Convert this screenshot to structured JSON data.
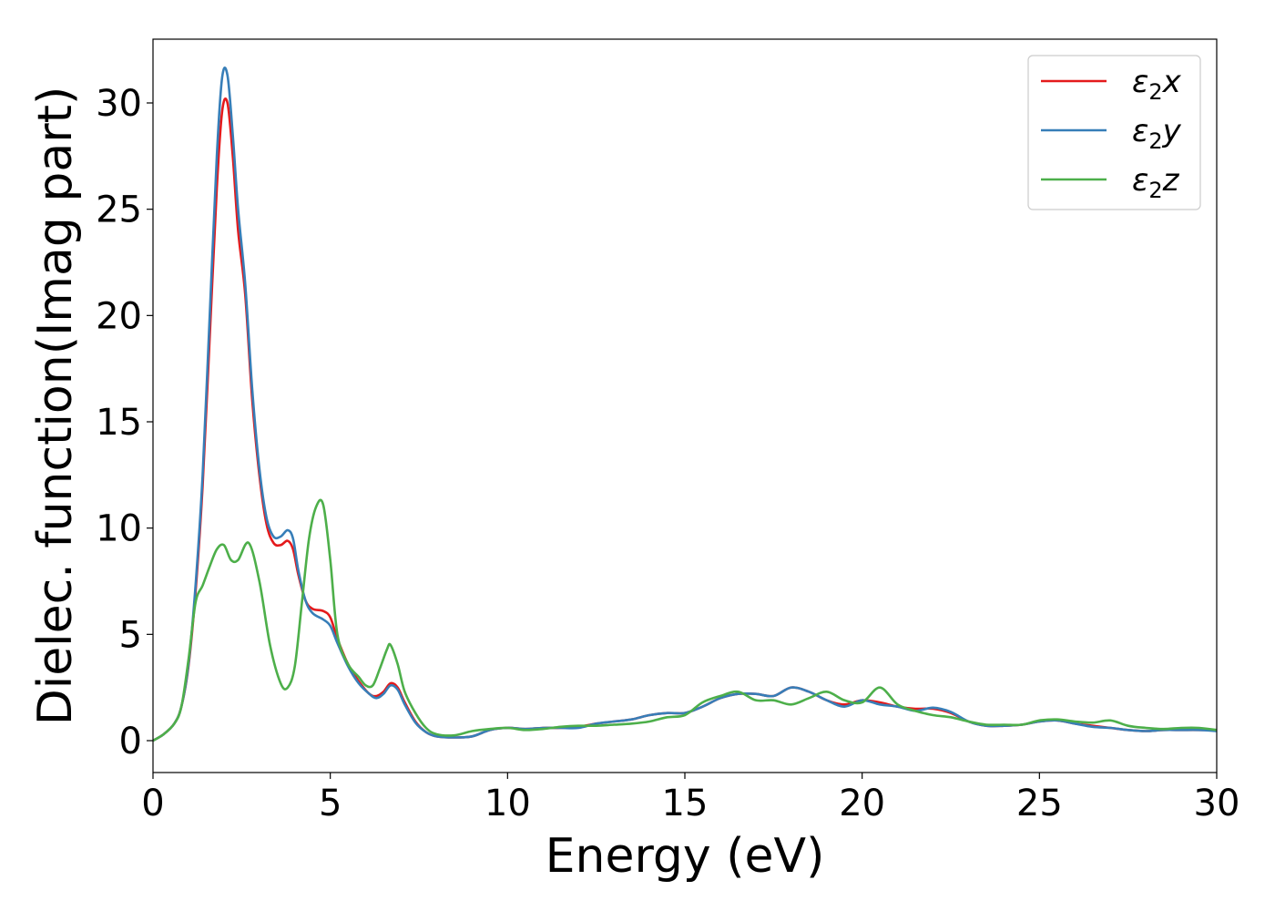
{
  "chart_data": {
    "type": "line",
    "xlabel": "Energy (eV)",
    "ylabel": "Dielec. function(Imag part)",
    "xlim": [
      0,
      30
    ],
    "ylim": [
      -1.5,
      33
    ],
    "xticks": [
      0,
      5,
      10,
      15,
      20,
      25,
      30
    ],
    "yticks": [
      0,
      5,
      10,
      15,
      20,
      25,
      30
    ],
    "grid": false,
    "legend_position": "top-right",
    "series": [
      {
        "name": "ε2x",
        "legend_base": "ε",
        "legend_sub": "2",
        "legend_var": "x",
        "color": "#e41a1c",
        "x": [
          0,
          0.3,
          0.6,
          0.8,
          1.0,
          1.2,
          1.4,
          1.6,
          1.8,
          1.95,
          2.1,
          2.25,
          2.4,
          2.6,
          2.8,
          3.0,
          3.2,
          3.4,
          3.6,
          3.8,
          3.95,
          4.1,
          4.3,
          4.5,
          4.8,
          5.0,
          5.2,
          5.5,
          5.8,
          6.1,
          6.3,
          6.5,
          6.7,
          6.9,
          7.1,
          7.4,
          7.7,
          8.0,
          8.5,
          9.0,
          9.5,
          10,
          10.5,
          11,
          11.5,
          12,
          12.5,
          13,
          13.5,
          14,
          14.5,
          15,
          15.5,
          16,
          16.5,
          17,
          17.5,
          18,
          18.5,
          19,
          19.5,
          20,
          20.5,
          21,
          21.5,
          22,
          22.5,
          23,
          23.5,
          24,
          24.5,
          25,
          25.5,
          26,
          26.5,
          27,
          27.5,
          28,
          28.5,
          29,
          29.5,
          30
        ],
        "y": [
          0,
          0.3,
          0.8,
          1.6,
          3.5,
          7,
          12,
          19,
          26,
          29.6,
          30,
          27.5,
          24,
          21,
          16,
          12.5,
          10.2,
          9.3,
          9.2,
          9.4,
          9.0,
          7.8,
          6.6,
          6.2,
          6.1,
          5.8,
          4.8,
          3.6,
          2.8,
          2.2,
          2.1,
          2.3,
          2.7,
          2.5,
          1.8,
          0.9,
          0.4,
          0.2,
          0.15,
          0.2,
          0.5,
          0.6,
          0.55,
          0.6,
          0.6,
          0.65,
          0.8,
          0.9,
          1.0,
          1.2,
          1.3,
          1.3,
          1.6,
          2.0,
          2.2,
          2.2,
          2.1,
          2.5,
          2.3,
          1.9,
          1.7,
          1.9,
          1.8,
          1.6,
          1.5,
          1.5,
          1.3,
          0.9,
          0.7,
          0.7,
          0.75,
          0.9,
          0.95,
          0.8,
          0.7,
          0.6,
          0.5,
          0.45,
          0.5,
          0.5,
          0.5,
          0.5
        ]
      },
      {
        "name": "ε2y",
        "legend_base": "ε",
        "legend_sub": "2",
        "legend_var": "y",
        "color": "#377eb8",
        "x": [
          0,
          0.3,
          0.6,
          0.8,
          1.0,
          1.2,
          1.4,
          1.6,
          1.8,
          1.95,
          2.1,
          2.25,
          2.4,
          2.6,
          2.8,
          3.0,
          3.2,
          3.4,
          3.6,
          3.8,
          3.95,
          4.1,
          4.3,
          4.5,
          4.8,
          5.0,
          5.2,
          5.5,
          5.8,
          6.1,
          6.3,
          6.5,
          6.7,
          6.9,
          7.1,
          7.4,
          7.7,
          8.0,
          8.5,
          9.0,
          9.5,
          10,
          10.5,
          11,
          11.5,
          12,
          12.5,
          13,
          13.5,
          14,
          14.5,
          15,
          15.5,
          16,
          16.5,
          17,
          17.5,
          18,
          18.5,
          19,
          19.5,
          20,
          20.5,
          21,
          21.5,
          22,
          22.5,
          23,
          23.5,
          24,
          24.5,
          25,
          25.5,
          26,
          26.5,
          27,
          27.5,
          28,
          28.5,
          29,
          29.5,
          30
        ],
        "y": [
          0,
          0.3,
          0.8,
          1.6,
          3.6,
          7.3,
          12.5,
          20,
          27.5,
          31.2,
          31.3,
          28.5,
          25,
          21.5,
          16.5,
          12.8,
          10.5,
          9.6,
          9.6,
          9.9,
          9.5,
          8.0,
          6.6,
          6.0,
          5.7,
          5.4,
          4.6,
          3.5,
          2.7,
          2.2,
          2.0,
          2.2,
          2.6,
          2.4,
          1.7,
          0.85,
          0.4,
          0.2,
          0.15,
          0.2,
          0.5,
          0.6,
          0.55,
          0.6,
          0.6,
          0.6,
          0.8,
          0.9,
          1.0,
          1.2,
          1.3,
          1.3,
          1.6,
          2.0,
          2.2,
          2.2,
          2.1,
          2.5,
          2.3,
          1.9,
          1.6,
          1.9,
          1.7,
          1.6,
          1.4,
          1.55,
          1.35,
          0.9,
          0.7,
          0.7,
          0.75,
          0.9,
          0.95,
          0.8,
          0.65,
          0.6,
          0.5,
          0.45,
          0.5,
          0.5,
          0.5,
          0.45
        ]
      },
      {
        "name": "ε2z",
        "legend_base": "ε",
        "legend_sub": "2",
        "legend_var": "z",
        "color": "#4daf4a",
        "x": [
          0,
          0.3,
          0.6,
          0.8,
          1.0,
          1.2,
          1.4,
          1.6,
          1.8,
          2.0,
          2.2,
          2.4,
          2.7,
          3.0,
          3.3,
          3.6,
          3.8,
          4.0,
          4.2,
          4.4,
          4.6,
          4.8,
          5.0,
          5.2,
          5.5,
          5.8,
          6.0,
          6.2,
          6.4,
          6.6,
          6.7,
          6.9,
          7.1,
          7.4,
          7.7,
          8.0,
          8.5,
          9.0,
          9.5,
          10,
          10.5,
          11,
          11.5,
          12,
          12.5,
          13,
          13.5,
          14,
          14.5,
          15,
          15.5,
          16,
          16.5,
          17,
          17.5,
          18,
          18.5,
          19,
          19.5,
          20,
          20.5,
          21,
          21.5,
          22,
          22.5,
          23,
          23.5,
          24,
          24.5,
          25,
          25.5,
          26,
          26.5,
          27,
          27.5,
          28,
          28.5,
          29,
          29.5,
          30
        ],
        "y": [
          0,
          0.3,
          0.8,
          1.6,
          3.8,
          6.5,
          7.3,
          8.2,
          9.0,
          9.2,
          8.5,
          8.5,
          9.3,
          7.5,
          4.5,
          2.7,
          2.5,
          3.5,
          6.5,
          9.5,
          11.0,
          11.1,
          8.5,
          5.0,
          3.6,
          3.0,
          2.6,
          2.6,
          3.4,
          4.3,
          4.5,
          3.6,
          2.3,
          1.3,
          0.6,
          0.3,
          0.25,
          0.45,
          0.55,
          0.6,
          0.5,
          0.55,
          0.65,
          0.7,
          0.7,
          0.75,
          0.8,
          0.9,
          1.1,
          1.2,
          1.8,
          2.1,
          2.3,
          1.9,
          1.9,
          1.7,
          2.0,
          2.3,
          1.9,
          1.8,
          2.5,
          1.7,
          1.4,
          1.2,
          1.1,
          0.9,
          0.75,
          0.75,
          0.75,
          0.95,
          1.0,
          0.9,
          0.85,
          0.95,
          0.7,
          0.6,
          0.55,
          0.6,
          0.6,
          0.5
        ]
      }
    ]
  }
}
